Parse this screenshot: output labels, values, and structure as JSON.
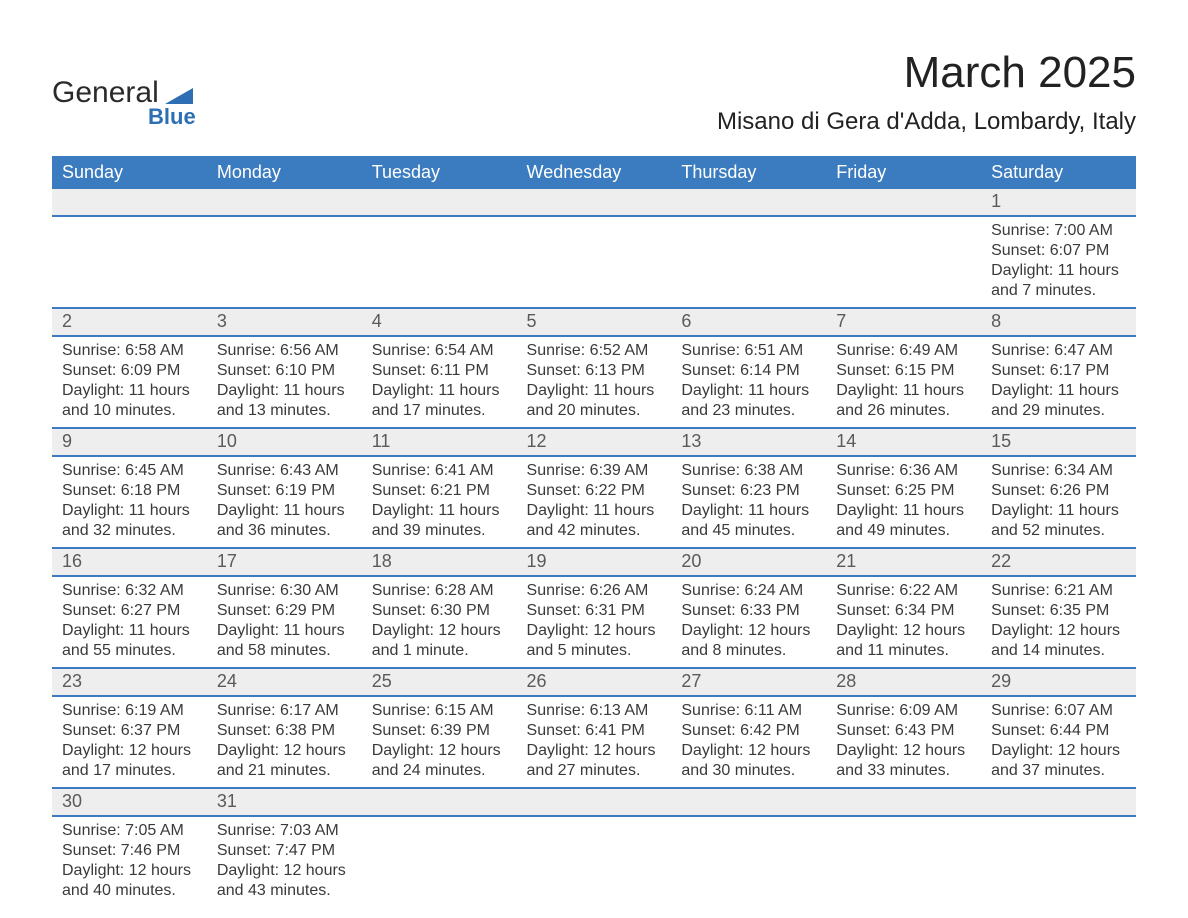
{
  "logo": {
    "word1": "General",
    "word2": "Blue",
    "shape_color": "#2d6eb5",
    "text_color_dark": "#2a2a2a",
    "text_color_blue": "#2d6eb5"
  },
  "header": {
    "month_title": "March 2025",
    "location": "Misano di Gera d'Adda, Lombardy, Italy"
  },
  "calendar": {
    "header_bg": "#3b7bbf",
    "header_fg": "#ffffff",
    "daynum_bg": "#eeeeee",
    "daynum_fg": "#5a5a5a",
    "row_border_color": "#3b7bbf",
    "text_color": "#3a3a3a",
    "columns": [
      "Sunday",
      "Monday",
      "Tuesday",
      "Wednesday",
      "Thursday",
      "Friday",
      "Saturday"
    ],
    "weeks": [
      [
        {
          "day": null
        },
        {
          "day": null
        },
        {
          "day": null
        },
        {
          "day": null
        },
        {
          "day": null
        },
        {
          "day": null
        },
        {
          "day": 1,
          "sunrise": "7:00 AM",
          "sunset": "6:07 PM",
          "daylight": "11 hours and 7 minutes."
        }
      ],
      [
        {
          "day": 2,
          "sunrise": "6:58 AM",
          "sunset": "6:09 PM",
          "daylight": "11 hours and 10 minutes."
        },
        {
          "day": 3,
          "sunrise": "6:56 AM",
          "sunset": "6:10 PM",
          "daylight": "11 hours and 13 minutes."
        },
        {
          "day": 4,
          "sunrise": "6:54 AM",
          "sunset": "6:11 PM",
          "daylight": "11 hours and 17 minutes."
        },
        {
          "day": 5,
          "sunrise": "6:52 AM",
          "sunset": "6:13 PM",
          "daylight": "11 hours and 20 minutes."
        },
        {
          "day": 6,
          "sunrise": "6:51 AM",
          "sunset": "6:14 PM",
          "daylight": "11 hours and 23 minutes."
        },
        {
          "day": 7,
          "sunrise": "6:49 AM",
          "sunset": "6:15 PM",
          "daylight": "11 hours and 26 minutes."
        },
        {
          "day": 8,
          "sunrise": "6:47 AM",
          "sunset": "6:17 PM",
          "daylight": "11 hours and 29 minutes."
        }
      ],
      [
        {
          "day": 9,
          "sunrise": "6:45 AM",
          "sunset": "6:18 PM",
          "daylight": "11 hours and 32 minutes."
        },
        {
          "day": 10,
          "sunrise": "6:43 AM",
          "sunset": "6:19 PM",
          "daylight": "11 hours and 36 minutes."
        },
        {
          "day": 11,
          "sunrise": "6:41 AM",
          "sunset": "6:21 PM",
          "daylight": "11 hours and 39 minutes."
        },
        {
          "day": 12,
          "sunrise": "6:39 AM",
          "sunset": "6:22 PM",
          "daylight": "11 hours and 42 minutes."
        },
        {
          "day": 13,
          "sunrise": "6:38 AM",
          "sunset": "6:23 PM",
          "daylight": "11 hours and 45 minutes."
        },
        {
          "day": 14,
          "sunrise": "6:36 AM",
          "sunset": "6:25 PM",
          "daylight": "11 hours and 49 minutes."
        },
        {
          "day": 15,
          "sunrise": "6:34 AM",
          "sunset": "6:26 PM",
          "daylight": "11 hours and 52 minutes."
        }
      ],
      [
        {
          "day": 16,
          "sunrise": "6:32 AM",
          "sunset": "6:27 PM",
          "daylight": "11 hours and 55 minutes."
        },
        {
          "day": 17,
          "sunrise": "6:30 AM",
          "sunset": "6:29 PM",
          "daylight": "11 hours and 58 minutes."
        },
        {
          "day": 18,
          "sunrise": "6:28 AM",
          "sunset": "6:30 PM",
          "daylight": "12 hours and 1 minute."
        },
        {
          "day": 19,
          "sunrise": "6:26 AM",
          "sunset": "6:31 PM",
          "daylight": "12 hours and 5 minutes."
        },
        {
          "day": 20,
          "sunrise": "6:24 AM",
          "sunset": "6:33 PM",
          "daylight": "12 hours and 8 minutes."
        },
        {
          "day": 21,
          "sunrise": "6:22 AM",
          "sunset": "6:34 PM",
          "daylight": "12 hours and 11 minutes."
        },
        {
          "day": 22,
          "sunrise": "6:21 AM",
          "sunset": "6:35 PM",
          "daylight": "12 hours and 14 minutes."
        }
      ],
      [
        {
          "day": 23,
          "sunrise": "6:19 AM",
          "sunset": "6:37 PM",
          "daylight": "12 hours and 17 minutes."
        },
        {
          "day": 24,
          "sunrise": "6:17 AM",
          "sunset": "6:38 PM",
          "daylight": "12 hours and 21 minutes."
        },
        {
          "day": 25,
          "sunrise": "6:15 AM",
          "sunset": "6:39 PM",
          "daylight": "12 hours and 24 minutes."
        },
        {
          "day": 26,
          "sunrise": "6:13 AM",
          "sunset": "6:41 PM",
          "daylight": "12 hours and 27 minutes."
        },
        {
          "day": 27,
          "sunrise": "6:11 AM",
          "sunset": "6:42 PM",
          "daylight": "12 hours and 30 minutes."
        },
        {
          "day": 28,
          "sunrise": "6:09 AM",
          "sunset": "6:43 PM",
          "daylight": "12 hours and 33 minutes."
        },
        {
          "day": 29,
          "sunrise": "6:07 AM",
          "sunset": "6:44 PM",
          "daylight": "12 hours and 37 minutes."
        }
      ],
      [
        {
          "day": 30,
          "sunrise": "7:05 AM",
          "sunset": "7:46 PM",
          "daylight": "12 hours and 40 minutes."
        },
        {
          "day": 31,
          "sunrise": "7:03 AM",
          "sunset": "7:47 PM",
          "daylight": "12 hours and 43 minutes."
        },
        {
          "day": null
        },
        {
          "day": null
        },
        {
          "day": null
        },
        {
          "day": null
        },
        {
          "day": null
        }
      ]
    ],
    "label_sunrise": "Sunrise: ",
    "label_sunset": "Sunset: ",
    "label_daylight": "Daylight: "
  }
}
